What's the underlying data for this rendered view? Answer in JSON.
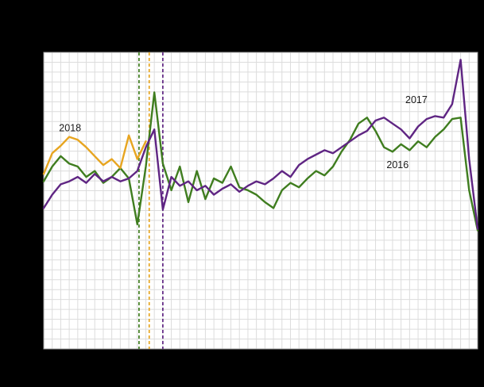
{
  "page": {
    "background_color": "#000000",
    "plot_background_color": "#ffffff",
    "grid_color": "#dcdcdc",
    "frame_color": "#9e9e9e"
  },
  "chart_data": {
    "type": "line",
    "title": "",
    "xlabel": "",
    "ylabel": "",
    "x_unit": "week",
    "xlim": [
      1,
      52
    ],
    "ylim": [
      0,
      100
    ],
    "grid": true,
    "legend_position": "none",
    "axis_tick_labels_visible": false,
    "series": [
      {
        "name": "2016",
        "color": "#3f7d1f",
        "weeks_start": 1,
        "values": [
          56.5,
          61.5,
          65,
          62.5,
          61.5,
          58,
          60,
          56,
          58,
          61,
          57.5,
          42,
          61.5,
          86.5,
          62.5,
          53.5,
          61.5,
          49.5,
          60,
          50.5,
          57.5,
          56,
          61.5,
          54.5,
          53.5,
          52,
          49.5,
          47.5,
          53.5,
          56,
          54.5,
          57.5,
          60,
          58.5,
          61.5,
          66.5,
          70.5,
          76,
          78,
          73.5,
          68,
          66.5,
          69,
          67,
          70,
          68,
          71.5,
          74,
          77.5,
          78,
          53.5,
          40
        ]
      },
      {
        "name": "2017",
        "color": "#5f2583",
        "weeks_start": 1,
        "values": [
          47.5,
          52,
          55.5,
          56.5,
          58,
          56,
          59,
          56.5,
          58,
          56.5,
          57.5,
          60,
          68,
          74,
          47,
          58,
          55,
          56.5,
          53.5,
          55,
          52,
          54,
          55.5,
          53,
          55,
          56.5,
          55.5,
          57.5,
          60,
          58,
          62,
          64,
          65.5,
          67,
          66,
          68,
          70,
          72,
          73.5,
          77,
          78,
          76,
          74,
          71,
          75,
          77.5,
          78.5,
          78,
          82.5,
          97.5,
          64,
          40.5
        ]
      },
      {
        "name": "2018",
        "color": "#e7a520",
        "weeks_start": 1,
        "values": [
          59,
          66,
          68.5,
          71.5,
          70.5,
          68,
          65,
          62,
          64,
          61,
          72,
          64,
          70
        ]
      }
    ],
    "event_markers": [
      {
        "series": "2016",
        "color": "#3f7d1f",
        "week": 12.2,
        "style": "dashed"
      },
      {
        "series": "2018",
        "color": "#e7a520",
        "week": 13.4,
        "style": "dashed"
      },
      {
        "series": "2017",
        "color": "#5f2583",
        "week": 15.0,
        "style": "dashed"
      }
    ],
    "annotations": [
      {
        "label": "2018",
        "week": 2.8,
        "value": 74.5
      },
      {
        "label": "2017",
        "week": 43.5,
        "value": 84.0
      },
      {
        "label": "2016",
        "week": 41.3,
        "value": 62.0
      }
    ]
  }
}
